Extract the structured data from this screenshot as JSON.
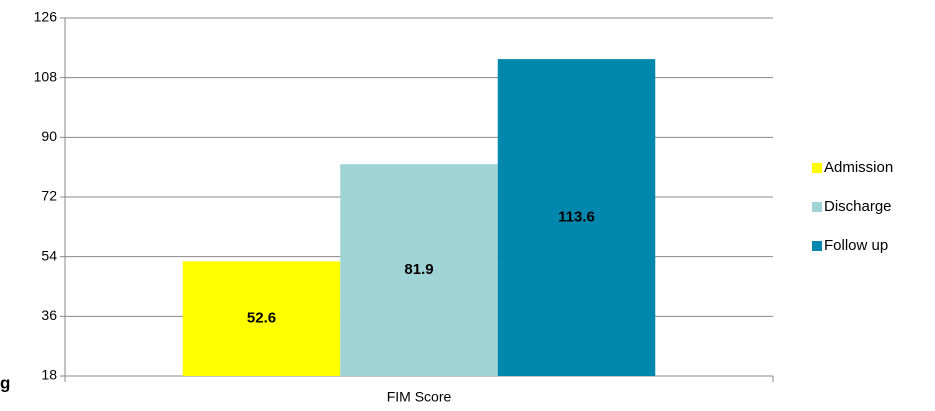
{
  "chart_data": {
    "type": "bar",
    "categories": [
      "FIM Score"
    ],
    "series": [
      {
        "name": "Admission",
        "color": "#ffff00",
        "values": [
          52.6
        ]
      },
      {
        "name": "Discharge",
        "color": "#a0d3d6",
        "values": [
          81.9
        ]
      },
      {
        "name": "Follow up",
        "color": "#0087ae",
        "values": [
          113.6
        ]
      }
    ],
    "ylim": [
      18,
      126
    ],
    "yticks": [
      18,
      36,
      54,
      72,
      90,
      108,
      126
    ],
    "grid": true,
    "legend": "right",
    "annotation": "g"
  }
}
